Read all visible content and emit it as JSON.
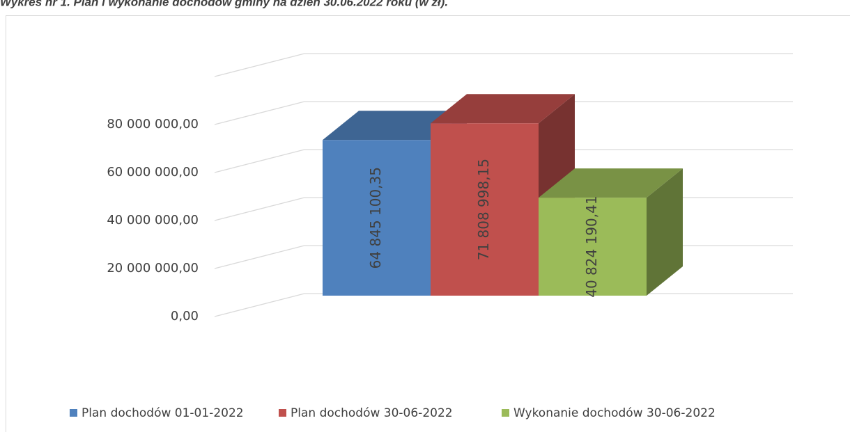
{
  "chart_data": {
    "type": "bar3d",
    "title": "Wykres nr 1. Plan i wykonanie dochodów gminy na dzień 30.06.2022 roku (w zł).",
    "series": [
      {
        "name": "Plan dochodów 01-01-2022",
        "color": "#4f81bd",
        "values": [
          64845100.35
        ],
        "value_labels": [
          "64 845 100,35"
        ]
      },
      {
        "name": "Plan dochodów 30-06-2022",
        "color": "#c0504d",
        "values": [
          71808998.15
        ],
        "value_labels": [
          "71 808 998,15"
        ]
      },
      {
        "name": "Wykonanie dochodów 30-06-2022",
        "color": "#9bbb59",
        "values": [
          40824190.41
        ],
        "value_labels": [
          "40 824 190,41"
        ]
      }
    ],
    "ylim": [
      0,
      100000000
    ],
    "yticks": [
      {
        "value": 0,
        "label": "0,00"
      },
      {
        "value": 20000000,
        "label": "20 000 000,00"
      },
      {
        "value": 40000000,
        "label": "40 000 000,00"
      },
      {
        "value": 60000000,
        "label": "60 000 000,00"
      },
      {
        "value": 80000000,
        "label": "80 000 000,00"
      }
    ],
    "grid": true,
    "legend": "bottom"
  }
}
